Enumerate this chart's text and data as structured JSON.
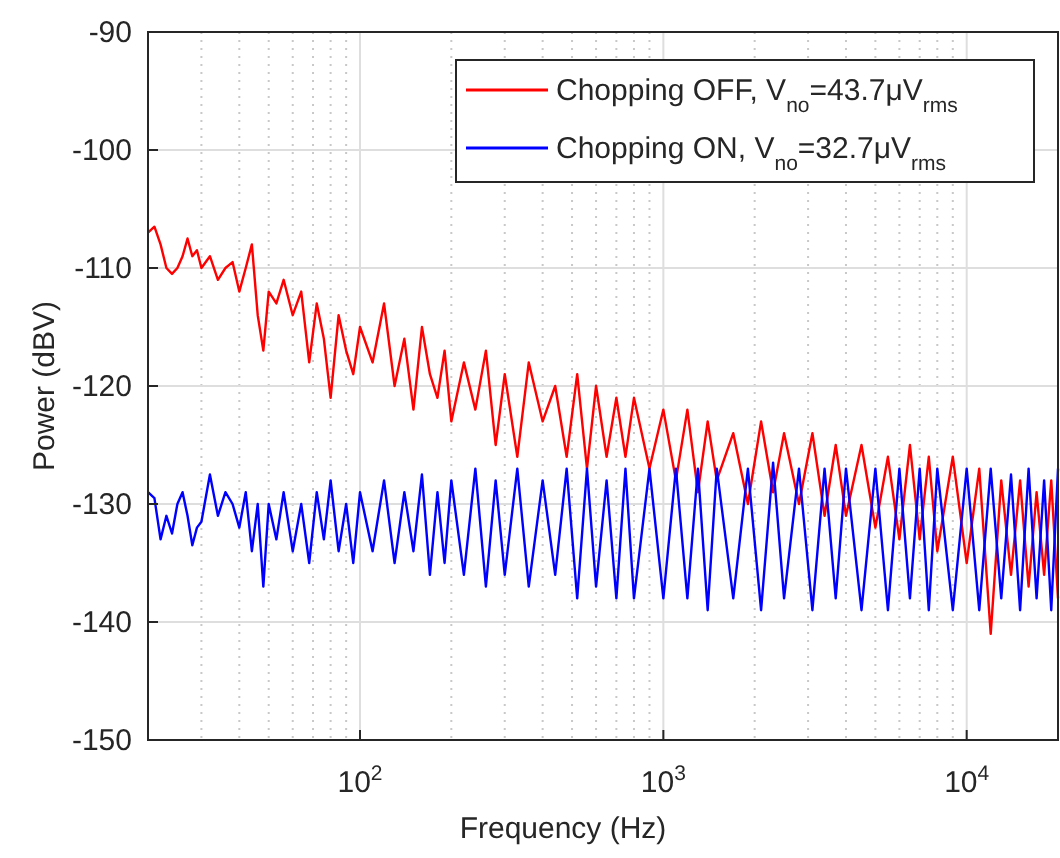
{
  "chart_data": {
    "type": "line",
    "xlabel": "Frequency (Hz)",
    "ylabel": "Power (dBV)",
    "log": "x",
    "grid": true,
    "legend": "top right",
    "line_style": "solid",
    "marker": "none",
    "xlim": [
      20,
      20000
    ],
    "ylim": [
      -150,
      -90
    ],
    "xticks": [
      {
        "value": 100,
        "label": "10$^{2}$"
      },
      {
        "value": 1000,
        "label": "10$^{3}$"
      },
      {
        "value": 10000,
        "label": "10$^{4}$"
      }
    ],
    "yticks": [
      -150,
      -140,
      -130,
      -120,
      -110,
      -100,
      -90
    ],
    "x": [
      20,
      21,
      22,
      23,
      24,
      25,
      26,
      27,
      28,
      29,
      30,
      32,
      34,
      36,
      38,
      40,
      42,
      44,
      46,
      48,
      50,
      53,
      56,
      60,
      64,
      68,
      72,
      76,
      80,
      85,
      90,
      95,
      100,
      110,
      120,
      130,
      140,
      150,
      160,
      170,
      180,
      190,
      200,
      220,
      240,
      260,
      280,
      300,
      330,
      360,
      400,
      440,
      480,
      520,
      560,
      600,
      650,
      700,
      750,
      800,
      900,
      1000,
      1100,
      1200,
      1300,
      1400,
      1500,
      1700,
      1900,
      2100,
      2300,
      2500,
      2800,
      3100,
      3400,
      3700,
      4000,
      4500,
      5000,
      5500,
      6000,
      6500,
      7000,
      7500,
      8000,
      9000,
      10000,
      11000,
      12000,
      13000,
      14000,
      15000,
      16000,
      17000,
      18000,
      19000,
      20000
    ],
    "series": [
      {
        "name": "Chopping OFF, V$_{no}$=43.7μV$_{rms}$",
        "color": "#ff0000",
        "values": [
          -107,
          -106.5,
          -108,
          -110,
          -110.5,
          -110,
          -109,
          -107.5,
          -109,
          -108.5,
          -110,
          -109,
          -111,
          -110,
          -109.5,
          -112,
          -110,
          -108,
          -114,
          -117,
          -112,
          -113,
          -111,
          -114,
          -112,
          -118,
          -113,
          -116,
          -121,
          -114,
          -117,
          -119,
          -115,
          -118,
          -113,
          -120,
          -116,
          -122,
          -115,
          -119,
          -121,
          -117,
          -123,
          -118,
          -122,
          -117,
          -125,
          -119,
          -126,
          -118,
          -123,
          -120,
          -126,
          -119,
          -127,
          -120,
          -126,
          -121,
          -126,
          -121,
          -127,
          -122,
          -128,
          -122,
          -129,
          -123,
          -128,
          -124,
          -130,
          -123,
          -129,
          -124,
          -130,
          -124,
          -131,
          -125,
          -131,
          -125,
          -132,
          -126,
          -133,
          -125,
          -133,
          -126,
          -134,
          -126,
          -135,
          -127,
          -141,
          -128,
          -136,
          -128,
          -137,
          -129,
          -136,
          -128,
          -138
        ]
      },
      {
        "name": "Chopping ON, V$_{no}$=32.7μV$_{rms}$",
        "color": "#0000ff",
        "values": [
          -129,
          -129.5,
          -133,
          -131,
          -132.5,
          -130,
          -129,
          -131,
          -133.5,
          -132,
          -131.5,
          -127.5,
          -131,
          -129,
          -130,
          -132,
          -129,
          -134,
          -130,
          -137,
          -130,
          -133,
          -129,
          -134,
          -130,
          -135,
          -129,
          -133,
          -128,
          -134,
          -130,
          -135,
          -129,
          -134,
          -128,
          -135,
          -129,
          -134,
          -127.5,
          -136,
          -129,
          -135,
          -128,
          -136,
          -127,
          -137,
          -128,
          -136,
          -127,
          -137,
          -128,
          -136,
          -127,
          -138,
          -127,
          -137,
          -128,
          -138,
          -127,
          -138,
          -127,
          -138,
          -127,
          -138,
          -127,
          -139,
          -127,
          -138,
          -127,
          -139,
          -126.5,
          -138,
          -127,
          -139,
          -127,
          -138,
          -127,
          -139,
          -127,
          -139,
          -127,
          -138,
          -127,
          -139,
          -127,
          -139,
          -127,
          -139,
          -127,
          -138,
          -127.5,
          -139,
          -127,
          -138,
          -128,
          -139,
          -127
        ]
      }
    ]
  }
}
